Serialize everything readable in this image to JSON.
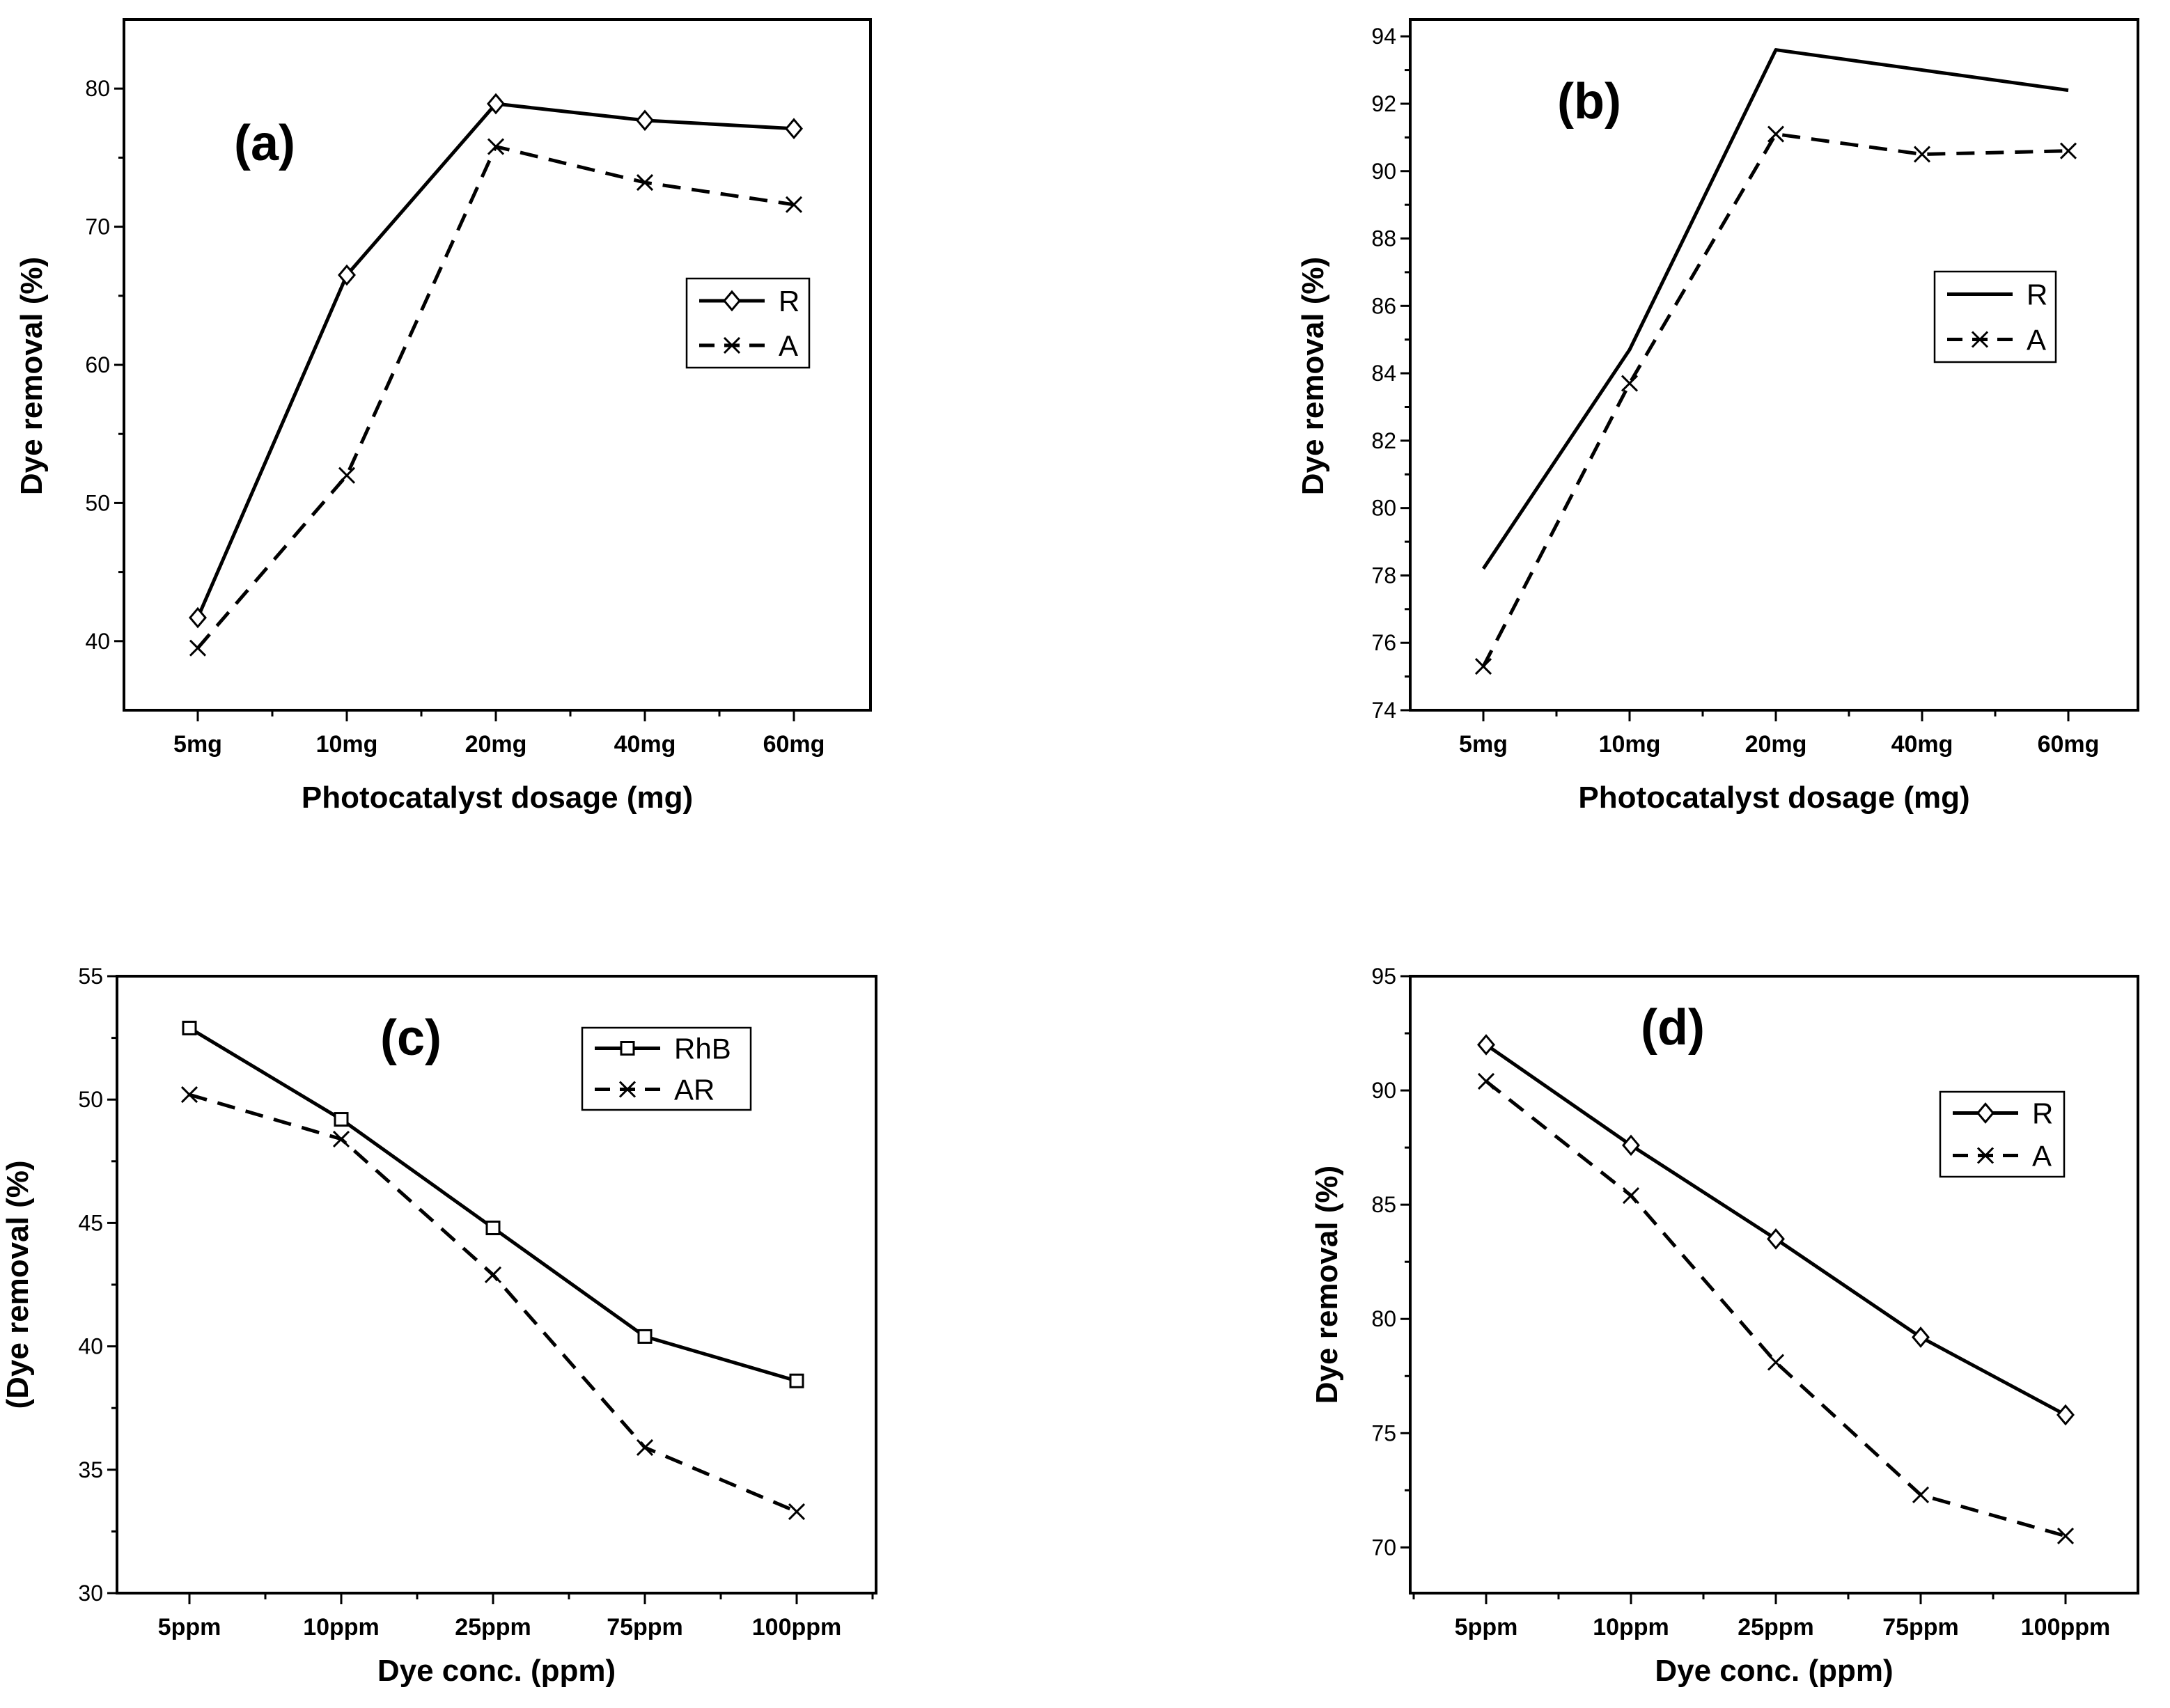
{
  "chart_data": [
    {
      "id": "a",
      "type": "line",
      "panel_label": "(a)",
      "xlabel": "Photocatalyst dosage (mg)",
      "ylabel": "Dye removal (%)",
      "categories": [
        "5mg",
        "10mg",
        "20mg",
        "40mg",
        "60mg"
      ],
      "ylim": [
        35,
        85
      ],
      "yticks": [
        40,
        50,
        60,
        70,
        80
      ],
      "legend_position": "center-right",
      "series": [
        {
          "name": "R",
          "style": "solid",
          "marker": "diamond",
          "values": [
            41.7,
            66.5,
            78.9,
            77.7,
            77.1
          ]
        },
        {
          "name": "A",
          "style": "dashed",
          "marker": "x",
          "values": [
            39.5,
            52.0,
            75.8,
            73.2,
            71.6
          ]
        }
      ]
    },
    {
      "id": "b",
      "type": "line",
      "panel_label": "(b)",
      "xlabel": "Photocatalyst dosage (mg)",
      "ylabel": "Dye removal (%)",
      "categories": [
        "5mg",
        "10mg",
        "20mg",
        "40mg",
        "60mg"
      ],
      "ylim": [
        74,
        94.5
      ],
      "yticks": [
        74,
        76,
        78,
        80,
        82,
        84,
        86,
        88,
        90,
        92,
        94
      ],
      "legend_position": "center-right",
      "series": [
        {
          "name": "R",
          "style": "solid",
          "marker": "none",
          "values": [
            78.2,
            84.7,
            93.6,
            93.0,
            92.4
          ]
        },
        {
          "name": "A",
          "style": "dashed",
          "marker": "x",
          "values": [
            75.3,
            83.7,
            91.1,
            90.5,
            90.6
          ]
        }
      ]
    },
    {
      "id": "c",
      "type": "line",
      "panel_label": "(c)",
      "xlabel": "Dye conc. (ppm)",
      "ylabel": "(Dye removal (%)",
      "categories": [
        "5ppm",
        "10ppm",
        "25ppm",
        "75ppm",
        "100ppm"
      ],
      "ylim": [
        30,
        55
      ],
      "yticks": [
        30,
        35,
        40,
        45,
        50,
        55
      ],
      "legend_position": "top-right",
      "series": [
        {
          "name": "RhB",
          "style": "solid",
          "marker": "square",
          "values": [
            52.9,
            49.2,
            44.8,
            40.4,
            38.6
          ]
        },
        {
          "name": "AR",
          "style": "dashed",
          "marker": "x",
          "values": [
            50.2,
            48.4,
            42.9,
            35.9,
            33.3
          ]
        }
      ]
    },
    {
      "id": "d",
      "type": "line",
      "panel_label": "(d)",
      "xlabel": "Dye conc. (ppm)",
      "ylabel": "Dye removal (%)",
      "categories": [
        "5ppm",
        "10ppm",
        "25ppm",
        "75ppm",
        "100ppm"
      ],
      "ylim": [
        68,
        95
      ],
      "yticks": [
        70,
        75,
        80,
        85,
        90,
        95
      ],
      "legend_position": "center-right",
      "series": [
        {
          "name": "R",
          "style": "solid",
          "marker": "diamond",
          "values": [
            92.0,
            87.6,
            83.5,
            79.2,
            75.8
          ]
        },
        {
          "name": "A",
          "style": "dashed",
          "marker": "x",
          "values": [
            90.4,
            85.4,
            78.1,
            72.3,
            70.5
          ]
        }
      ]
    }
  ]
}
